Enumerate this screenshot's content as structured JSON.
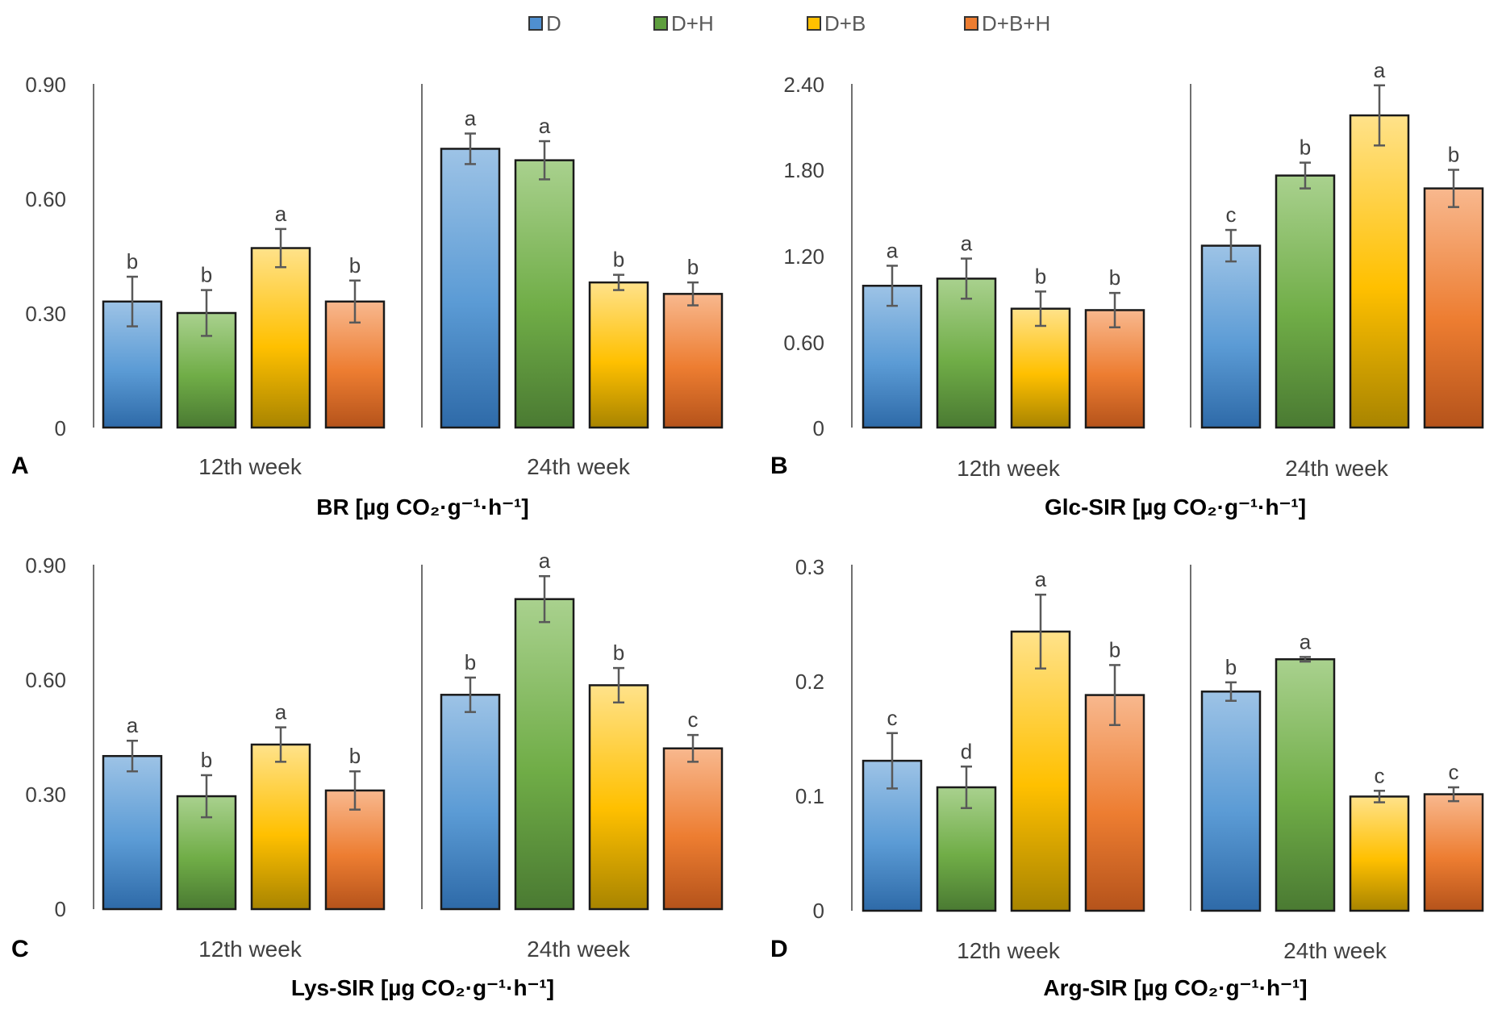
{
  "legend": {
    "items": [
      {
        "label": "D",
        "color": "#4f8fd0"
      },
      {
        "label": "D+H",
        "color": "#5e9e3e"
      },
      {
        "label": "D+B",
        "color": "#ffc000"
      },
      {
        "label": "D+B+H",
        "color": "#ed7d31"
      }
    ]
  },
  "chart_data": [
    {
      "panel": "A",
      "type": "bar",
      "title": "BR [µg CO₂·g⁻¹·h⁻¹]",
      "groups": [
        "12th week",
        "24th week"
      ],
      "series_names": [
        "D",
        "D+H",
        "D+B",
        "D+B+H"
      ],
      "ylim": [
        0,
        0.9
      ],
      "yticks": [
        "0",
        "0.30",
        "0.60",
        "0.90"
      ],
      "yticks_values": [
        0,
        0.3,
        0.6,
        0.9
      ],
      "values": [
        [
          0.33,
          0.3,
          0.47,
          0.33
        ],
        [
          0.73,
          0.7,
          0.38,
          0.35
        ]
      ],
      "errors": [
        [
          0.065,
          0.06,
          0.05,
          0.055
        ],
        [
          0.04,
          0.05,
          0.02,
          0.03
        ]
      ],
      "letters": [
        [
          "b",
          "b",
          "a",
          "b"
        ],
        [
          "a",
          "a",
          "b",
          "b"
        ]
      ]
    },
    {
      "panel": "B",
      "type": "bar",
      "title": "Glc-SIR [µg CO₂·g⁻¹·h⁻¹]",
      "groups": [
        "12th week",
        "24th week"
      ],
      "series_names": [
        "D",
        "D+H",
        "D+B",
        "D+B+H"
      ],
      "ylim": [
        0,
        2.4
      ],
      "yticks": [
        "0",
        "0.60",
        "1.20",
        "1.80",
        "2.40"
      ],
      "yticks_values": [
        0,
        0.6,
        1.2,
        1.8,
        2.4
      ],
      "values": [
        [
          0.99,
          1.04,
          0.83,
          0.82
        ],
        [
          1.27,
          1.76,
          2.18,
          1.67
        ]
      ],
      "errors": [
        [
          0.14,
          0.14,
          0.12,
          0.12
        ],
        [
          0.11,
          0.09,
          0.21,
          0.13
        ]
      ],
      "letters": [
        [
          "a",
          "a",
          "b",
          "b"
        ],
        [
          "c",
          "b",
          "a",
          "b"
        ]
      ]
    },
    {
      "panel": "C",
      "type": "bar",
      "title": "Lys-SIR [µg CO₂·g⁻¹·h⁻¹]",
      "groups": [
        "12th week",
        "24th week"
      ],
      "series_names": [
        "D",
        "D+H",
        "D+B",
        "D+B+H"
      ],
      "ylim": [
        0,
        0.9
      ],
      "yticks": [
        "0",
        "0.30",
        "0.60",
        "0.90"
      ],
      "yticks_values": [
        0,
        0.3,
        0.6,
        0.9
      ],
      "values": [
        [
          0.4,
          0.295,
          0.43,
          0.31
        ],
        [
          0.56,
          0.81,
          0.585,
          0.42
        ]
      ],
      "errors": [
        [
          0.04,
          0.055,
          0.045,
          0.05
        ],
        [
          0.045,
          0.06,
          0.045,
          0.035
        ]
      ],
      "letters": [
        [
          "a",
          "b",
          "a",
          "b"
        ],
        [
          "b",
          "a",
          "b",
          "c"
        ]
      ]
    },
    {
      "panel": "D",
      "type": "bar",
      "title": "Arg-SIR [µg CO₂·g⁻¹·h⁻¹]",
      "groups": [
        "12th week",
        "24th week"
      ],
      "series_names": [
        "D",
        "D+H",
        "D+B",
        "D+B+H"
      ],
      "ylim": [
        0,
        0.3
      ],
      "yticks": [
        "0",
        "0.1",
        "0.2",
        "0.3"
      ],
      "yticks_values": [
        0,
        0.1,
        0.2,
        0.3
      ],
      "values": [
        [
          0.13,
          0.107,
          0.242,
          0.187
        ],
        [
          0.19,
          0.218,
          0.099,
          0.101
        ]
      ],
      "errors": [
        [
          0.024,
          0.018,
          0.032,
          0.026
        ],
        [
          0.008,
          0.002,
          0.005,
          0.006
        ]
      ],
      "letters": [
        [
          "c",
          "d",
          "a",
          "b"
        ],
        [
          "b",
          "a",
          "c",
          "c"
        ]
      ]
    }
  ]
}
